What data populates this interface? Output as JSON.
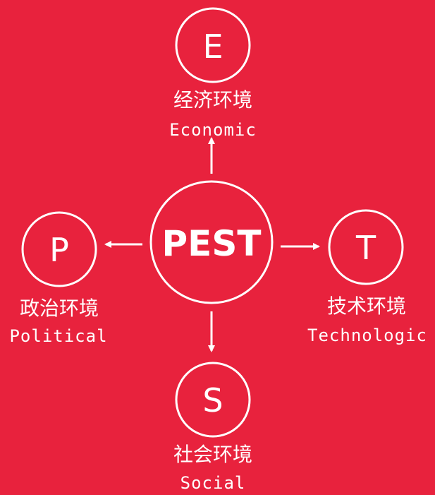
{
  "colors": {
    "background": "#e8223d",
    "foreground": "#ffffff"
  },
  "center": {
    "label": "PEST"
  },
  "nodes": {
    "economic": {
      "letter": "E",
      "label_cn": "经济环境",
      "label_en": "Economic"
    },
    "political": {
      "letter": "P",
      "label_cn": "政治环境",
      "label_en": "Political"
    },
    "technological": {
      "letter": "T",
      "label_cn": "技术环境",
      "label_en": "Technologic"
    },
    "social": {
      "letter": "S",
      "label_cn": "社会环境",
      "label_en": "Social"
    }
  }
}
